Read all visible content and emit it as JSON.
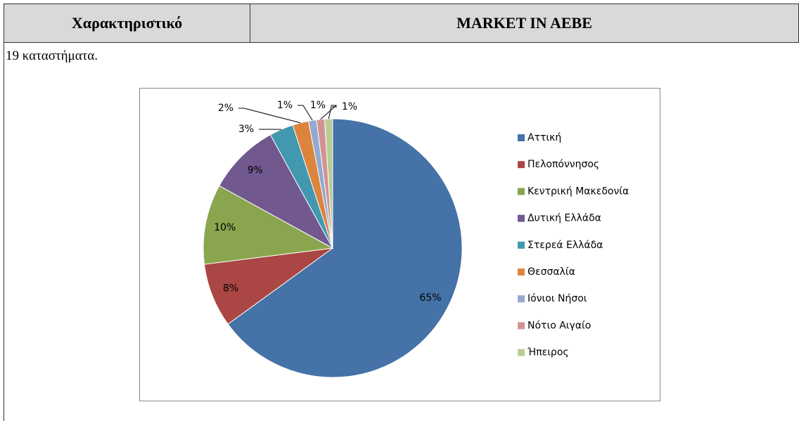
{
  "header": {
    "left": "Χαρακτηριστικό",
    "right": "MARKET IN AEBE"
  },
  "body_text": "19 καταστήματα.",
  "chart_data": {
    "type": "pie",
    "categories": [
      "Αττική",
      "Πελοπόννησος",
      "Κεντρική Μακεδονία",
      "Δυτική Ελλάδα",
      "Στερεά Ελλάδα",
      "Θεσσαλία",
      "Ιόνιοι Νήσοι",
      "Νότιο Αιγαίο",
      "Ήπειρος"
    ],
    "values": [
      65,
      8,
      10,
      9,
      3,
      2,
      1,
      1,
      1
    ],
    "value_labels": [
      "65%",
      "8%",
      "10%",
      "9%",
      "3%",
      "2%",
      "1%",
      "1%",
      "1%"
    ],
    "colors": [
      "#4572a7",
      "#aa4643",
      "#89a54e",
      "#71588f",
      "#4198af",
      "#db843d",
      "#93a9cf",
      "#d19392",
      "#b9cd96"
    ],
    "legend": "right"
  }
}
